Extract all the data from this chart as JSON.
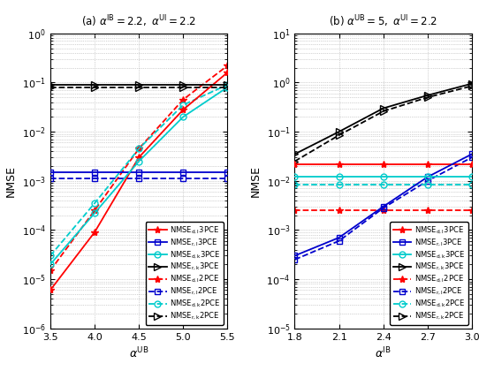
{
  "subplot_a": {
    "title": "(a) $\\alpha^{\\mathrm{IB}} = 2.2,\\ \\alpha^{\\mathrm{UI}} = 2.2$",
    "xlabel": "$\\alpha^{\\mathrm{UB}}$",
    "xlim": [
      3.5,
      5.5
    ],
    "xticks": [
      3.5,
      4.0,
      4.5,
      5.0,
      5.5
    ],
    "ylim": [
      1e-06,
      1.0
    ],
    "yticks": [
      1e-06,
      1e-05,
      0.0001,
      0.001,
      0.01,
      0.1
    ],
    "x": [
      3.5,
      4.0,
      4.5,
      5.0,
      5.5
    ],
    "NMSE_dl_3PCE": [
      6e-06,
      9e-05,
      0.003,
      0.028,
      0.16
    ],
    "NMSE_rl_3PCE": [
      0.0015,
      0.0015,
      0.0015,
      0.0015,
      0.0015
    ],
    "NMSE_dk_3PCE": [
      2e-05,
      0.00022,
      0.0025,
      0.02,
      0.08
    ],
    "NMSE_rk_3PCE": [
      0.09,
      0.09,
      0.09,
      0.09,
      0.09
    ],
    "NMSE_dl_2PCE": [
      1.5e-05,
      0.00025,
      0.0045,
      0.045,
      0.22
    ],
    "NMSE_rl_2PCE": [
      0.0011,
      0.0011,
      0.0011,
      0.0011,
      0.0011
    ],
    "NMSE_dk_2PCE": [
      3e-05,
      0.00035,
      0.0045,
      0.035,
      0.09
    ],
    "NMSE_rk_2PCE": [
      0.08,
      0.08,
      0.08,
      0.08,
      0.08
    ]
  },
  "subplot_b": {
    "title": "(b) $\\alpha^{\\mathrm{UB}} = 5,\\ \\alpha^{\\mathrm{UI}} = 2.2$",
    "xlabel": "$\\alpha^{\\mathrm{IB}}$",
    "xlim": [
      1.8,
      3.0
    ],
    "xticks": [
      1.8,
      2.1,
      2.4,
      2.7,
      3.0
    ],
    "ylim": [
      1e-05,
      10.0
    ],
    "yticks": [
      1e-05,
      0.0001,
      0.001,
      0.01,
      0.1,
      1.0
    ],
    "x": [
      1.8,
      2.1,
      2.4,
      2.7,
      3.0
    ],
    "NMSE_dl_3PCE": [
      0.022,
      0.022,
      0.022,
      0.022,
      0.022
    ],
    "NMSE_rl_3PCE": [
      0.0003,
      0.0007,
      0.003,
      0.012,
      0.035
    ],
    "NMSE_dk_3PCE": [
      0.012,
      0.012,
      0.012,
      0.012,
      0.012
    ],
    "NMSE_rk_3PCE": [
      0.035,
      0.1,
      0.3,
      0.55,
      0.95
    ],
    "NMSE_dl_2PCE": [
      0.0025,
      0.0025,
      0.0025,
      0.0025,
      0.0025
    ],
    "NMSE_rl_2PCE": [
      0.00025,
      0.0006,
      0.0028,
      0.01,
      0.03
    ],
    "NMSE_dk_2PCE": [
      0.0085,
      0.0085,
      0.0085,
      0.0085,
      0.0085
    ],
    "NMSE_rk_2PCE": [
      0.025,
      0.085,
      0.26,
      0.5,
      0.85
    ]
  },
  "ylabel": "NMSE",
  "colors": {
    "red": "#ff0000",
    "blue": "#0000cd",
    "cyan": "#00cccc",
    "black": "#000000"
  },
  "legend_entries": [
    "NMSE$_{\\mathrm{d,l}}$3PCE",
    "NMSE$_{\\mathrm{r,l}}$3PCE",
    "NMSE$_{\\mathrm{d,k}}$3PCE",
    "NMSE$_{\\mathrm{r,k}}$3PCE",
    "NMSE$_{\\mathrm{d,l}}$2PCE",
    "NMSE$_{\\mathrm{r,l}}$2PCE",
    "NMSE$_{\\mathrm{d,k}}$2PCE",
    "NMSE$_{\\mathrm{r,k}}$2PCE"
  ]
}
